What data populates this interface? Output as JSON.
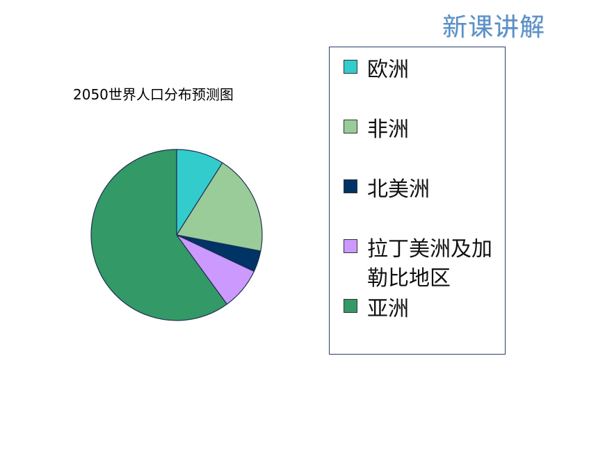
{
  "header": {
    "title": "新课讲解"
  },
  "chart_data": {
    "type": "pie",
    "title": "2050世界人口分布预测图",
    "slices": [
      {
        "label": "欧洲",
        "value": 9,
        "color": "#33cccc"
      },
      {
        "label": "非洲",
        "value": 19,
        "color": "#99cc99"
      },
      {
        "label": "北美洲",
        "value": 4,
        "color": "#003366"
      },
      {
        "label": "拉丁美洲及加勒比地区",
        "value": 8,
        "color": "#cc99ff"
      },
      {
        "label": "亚洲",
        "value": 60,
        "color": "#339966"
      }
    ],
    "legend": "right"
  }
}
